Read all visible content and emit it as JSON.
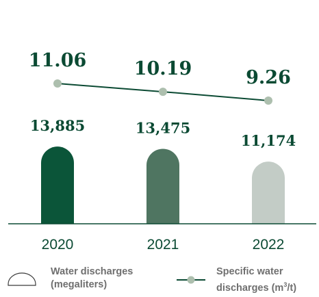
{
  "chart_data": {
    "type": "bar+line",
    "categories": [
      "2020",
      "2021",
      "2022"
    ],
    "bars": {
      "name": "Water discharges (megaliters)",
      "values": [
        13885,
        13475,
        11174
      ],
      "labels": [
        "13,885",
        "13,475",
        "11,174"
      ],
      "colors": [
        "#0b5539",
        "#4f7561",
        "#c3ccc6"
      ]
    },
    "line": {
      "name": "Specific water discharges (m³/t)",
      "values": [
        11.06,
        10.19,
        9.26
      ],
      "labels": [
        "11.06",
        "10.19",
        "9.26"
      ],
      "line_color": "#0b4a33",
      "marker_color": "#adbfae"
    },
    "grid": false,
    "legend_position": "bottom"
  },
  "legend": {
    "bars_line1": "Water discharges",
    "bars_line2": "(megaliters)",
    "line_line1": "Specific water",
    "line_line2_prefix": "discharges (m",
    "line_line2_sup": "3",
    "line_line2_suffix": "/t)"
  },
  "colors": {
    "value_text": "#0b4a33",
    "axis": "#0b4a33",
    "year_text": "#0b4a33",
    "legend_text": "#6f6f6f",
    "legend_icon": "#3a3a3a"
  }
}
